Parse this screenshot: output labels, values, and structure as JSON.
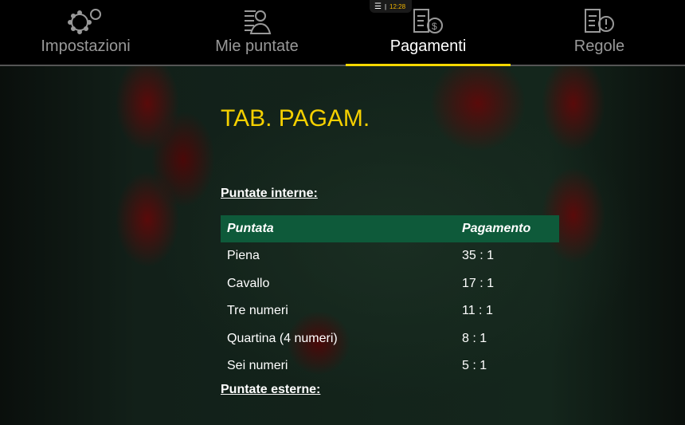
{
  "nav": {
    "tabs": [
      {
        "label": "Impostazioni",
        "icon": "gears-icon"
      },
      {
        "label": "Mie puntate",
        "icon": "user-list-icon"
      },
      {
        "label": "Pagamenti",
        "icon": "money-document-icon",
        "active": true
      },
      {
        "label": "Regole",
        "icon": "rules-document-icon"
      }
    ]
  },
  "clock": {
    "time": "12:28",
    "icon": "menu-icon"
  },
  "title": "TAB. PAGAM.",
  "inside": {
    "heading": "Puntate interne:",
    "columns": [
      "Puntata",
      "Pagamento"
    ],
    "rows": [
      [
        "Piena",
        "35 : 1"
      ],
      [
        "Cavallo",
        "17 : 1"
      ],
      [
        "Tre numeri",
        "11 : 1"
      ],
      [
        "Quartina (4 numeri)",
        "8 : 1"
      ],
      [
        "Sei numeri",
        "5 : 1"
      ]
    ]
  },
  "outside": {
    "heading": "Puntate esterne:"
  },
  "colors": {
    "accent": "#f5d800",
    "header_bg": "#0e5a3a"
  }
}
